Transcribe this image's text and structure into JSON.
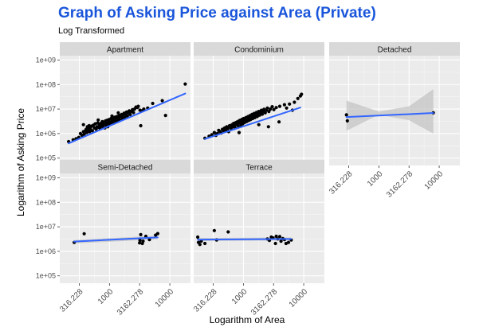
{
  "chart_data": {
    "type": "scatter",
    "title": "Graph of Asking Price against Area (Private)",
    "subtitle": "Log Transformed",
    "xlabel": "Logarithm of Area",
    "ylabel": "Logarithm of Asking Price",
    "x_scale": "log10",
    "y_scale": "log10",
    "xlim": [
      150,
      22000
    ],
    "ylim": [
      50000,
      1500000000
    ],
    "x_ticks": [
      316.228,
      1000,
      3162.278,
      10000
    ],
    "x_tick_labels": [
      "316.228",
      "1000",
      "3162.278",
      "10000"
    ],
    "y_ticks": [
      100000,
      1000000,
      10000000,
      100000000,
      1000000000
    ],
    "y_tick_labels": [
      "1e+05",
      "1e+06",
      "1e+07",
      "1e+08",
      "1e+09"
    ],
    "grid": true,
    "legend": "none",
    "point_color": "#000000",
    "fit_color": "#3366FF",
    "band_color": "#bebebe",
    "panel_background": "#ebebeb",
    "strip_background": "#d9d9d9",
    "panels": [
      {
        "name": "Apartment",
        "points": [
          [
            210,
            470000
          ],
          [
            250,
            560000
          ],
          [
            280,
            620000
          ],
          [
            310,
            700000
          ],
          [
            330,
            1000000
          ],
          [
            350,
            850000
          ],
          [
            370,
            1200000
          ],
          [
            380,
            950000
          ],
          [
            400,
            1300000
          ],
          [
            410,
            1500000
          ],
          [
            420,
            1100000
          ],
          [
            430,
            1900000
          ],
          [
            440,
            1700000
          ],
          [
            450,
            1400000
          ],
          [
            460,
            2100000
          ],
          [
            470,
            1200000
          ],
          [
            480,
            1600000
          ],
          [
            500,
            2000000
          ],
          [
            520,
            1300000
          ],
          [
            540,
            2200000
          ],
          [
            560,
            1700000
          ],
          [
            580,
            2500000
          ],
          [
            600,
            1500000
          ],
          [
            620,
            1900000
          ],
          [
            640,
            2700000
          ],
          [
            660,
            1800000
          ],
          [
            680,
            2300000
          ],
          [
            700,
            1600000
          ],
          [
            720,
            2600000
          ],
          [
            740,
            2000000
          ],
          [
            760,
            3100000
          ],
          [
            780,
            1900000
          ],
          [
            800,
            2400000
          ],
          [
            820,
            2900000
          ],
          [
            840,
            1700000
          ],
          [
            860,
            3300000
          ],
          [
            880,
            2200000
          ],
          [
            900,
            2600000
          ],
          [
            920,
            3500000
          ],
          [
            940,
            1900000
          ],
          [
            960,
            2800000
          ],
          [
            980,
            3700000
          ],
          [
            1000,
            2300000
          ],
          [
            1030,
            3000000
          ],
          [
            1060,
            4100000
          ],
          [
            1090,
            2500000
          ],
          [
            1120,
            3400000
          ],
          [
            1150,
            4400000
          ],
          [
            1180,
            2700000
          ],
          [
            1210,
            3800000
          ],
          [
            1240,
            4700000
          ],
          [
            1270,
            3100000
          ],
          [
            1300,
            4200000
          ],
          [
            1340,
            5000000
          ],
          [
            1380,
            3400000
          ],
          [
            1420,
            4600000
          ],
          [
            1460,
            5500000
          ],
          [
            1500,
            3700000
          ],
          [
            1550,
            5100000
          ],
          [
            1600,
            6000000
          ],
          [
            1650,
            4200000
          ],
          [
            1700,
            5600000
          ],
          [
            1750,
            6800000
          ],
          [
            1800,
            4600000
          ],
          [
            1860,
            6200000
          ],
          [
            1920,
            7500000
          ],
          [
            1980,
            5200000
          ],
          [
            2050,
            7000000
          ],
          [
            2120,
            8500000
          ],
          [
            2200,
            6000000
          ],
          [
            2280,
            8000000
          ],
          [
            2400,
            9500000
          ],
          [
            2500,
            7200000
          ],
          [
            2600,
            10000000
          ],
          [
            2750,
            12000000
          ],
          [
            2900,
            11500000
          ],
          [
            3000,
            13000000
          ],
          [
            3200,
            9000000
          ],
          [
            3400,
            8500000
          ],
          [
            3700,
            10000000
          ],
          [
            4300,
            11000000
          ],
          [
            5200,
            17000000
          ],
          [
            7500,
            22000000
          ],
          [
            8500,
            5500000
          ],
          [
            18000,
            105000000
          ],
          [
            3300,
            2100000
          ],
          [
            1400,
            7000000
          ],
          [
            1100,
            5200000
          ],
          [
            650,
            3600000
          ],
          [
            370,
            2300000
          ]
        ],
        "fit": {
          "x": [
            210,
            18000
          ],
          "y": [
            400000,
            43000000
          ]
        }
      },
      {
        "name": "Condominium",
        "points": [
          [
            230,
            650000
          ],
          [
            270,
            780000
          ],
          [
            300,
            900000
          ],
          [
            330,
            1100000
          ],
          [
            350,
            850000
          ],
          [
            370,
            1000000
          ],
          [
            390,
            1350000
          ],
          [
            410,
            1200000
          ],
          [
            430,
            1050000
          ],
          [
            450,
            1500000
          ],
          [
            470,
            1300000
          ],
          [
            490,
            1700000
          ],
          [
            510,
            1400000
          ],
          [
            530,
            1900000
          ],
          [
            550,
            1600000
          ],
          [
            570,
            1200000
          ],
          [
            590,
            2100000
          ],
          [
            610,
            1800000
          ],
          [
            630,
            1500000
          ],
          [
            650,
            2300000
          ],
          [
            670,
            1900000
          ],
          [
            690,
            2600000
          ],
          [
            710,
            2100000
          ],
          [
            730,
            1700000
          ],
          [
            750,
            2800000
          ],
          [
            770,
            2300000
          ],
          [
            790,
            3000000
          ],
          [
            810,
            2500000
          ],
          [
            830,
            1900000
          ],
          [
            850,
            3300000
          ],
          [
            870,
            2700000
          ],
          [
            890,
            3500000
          ],
          [
            910,
            2200000
          ],
          [
            930,
            3000000
          ],
          [
            950,
            3800000
          ],
          [
            970,
            2500000
          ],
          [
            990,
            3200000
          ],
          [
            1010,
            4100000
          ],
          [
            1040,
            2800000
          ],
          [
            1070,
            3600000
          ],
          [
            1100,
            4500000
          ],
          [
            1130,
            3100000
          ],
          [
            1160,
            4000000
          ],
          [
            1190,
            4900000
          ],
          [
            1220,
            3400000
          ],
          [
            1250,
            4400000
          ],
          [
            1280,
            5400000
          ],
          [
            1310,
            3700000
          ],
          [
            1350,
            4900000
          ],
          [
            1390,
            6000000
          ],
          [
            1430,
            4100000
          ],
          [
            1470,
            5400000
          ],
          [
            1510,
            6600000
          ],
          [
            1550,
            4500000
          ],
          [
            1600,
            6000000
          ],
          [
            1650,
            7300000
          ],
          [
            1700,
            5000000
          ],
          [
            1750,
            6600000
          ],
          [
            1800,
            8000000
          ],
          [
            1860,
            5600000
          ],
          [
            1920,
            7300000
          ],
          [
            1990,
            8900000
          ],
          [
            2060,
            6200000
          ],
          [
            2130,
            8100000
          ],
          [
            2200,
            9800000
          ],
          [
            2300,
            7000000
          ],
          [
            2400,
            9000000
          ],
          [
            2500,
            11000000
          ],
          [
            2650,
            8000000
          ],
          [
            2800,
            10000000
          ],
          [
            3000,
            12500000
          ],
          [
            3200,
            9500000
          ],
          [
            3500,
            11500000
          ],
          [
            4000,
            13000000
          ],
          [
            4800,
            15000000
          ],
          [
            5200,
            11000000
          ],
          [
            5800,
            16000000
          ],
          [
            7000,
            19000000
          ],
          [
            8000,
            27000000
          ],
          [
            8800,
            34000000
          ],
          [
            9200,
            40000000
          ],
          [
            6500,
            9000000
          ],
          [
            2600,
            1900000
          ],
          [
            1800,
            2300000
          ],
          [
            850,
            1100000
          ],
          [
            3900,
            3000000
          ]
        ],
        "fit": {
          "x": [
            230,
            8800
          ],
          "y": [
            600000,
            11500000
          ]
        }
      },
      {
        "name": "Detached",
        "points": [
          [
            290,
            5800000
          ],
          [
            300,
            3300000
          ],
          [
            8000,
            7000000
          ]
        ],
        "fit": {
          "x": [
            290,
            8000
          ],
          "y": [
            4700000,
            6900000
          ]
        },
        "band": {
          "x": [
            290,
            1000,
            3162,
            8000
          ],
          "lo": [
            1300000,
            5900000,
            3500000,
            1000000
          ],
          "hi": [
            22000000,
            8000000,
            13000000,
            65000000
          ]
        }
      },
      {
        "name": "Semi-Detached",
        "points": [
          [
            260,
            2300000
          ],
          [
            380,
            5200000
          ],
          [
            3150,
            2200000
          ],
          [
            3200,
            2800000
          ],
          [
            3300,
            4800000
          ],
          [
            3500,
            2100000
          ],
          [
            3600,
            2600000
          ],
          [
            4000,
            4100000
          ],
          [
            5800,
            4600000
          ],
          [
            6300,
            5300000
          ],
          [
            4600,
            3000000
          ]
        ],
        "fit": {
          "x": [
            260,
            6300
          ],
          "y": [
            2500000,
            3700000
          ]
        },
        "band": {
          "x": [
            260,
            6300
          ],
          "lo": [
            2100000,
            3100000
          ],
          "hi": [
            2900000,
            4400000
          ]
        }
      },
      {
        "name": "Terrace",
        "points": [
          [
            175,
            3800000
          ],
          [
            180,
            2300000
          ],
          [
            190,
            1900000
          ],
          [
            200,
            2600000
          ],
          [
            230,
            2100000
          ],
          [
            330,
            7000000
          ],
          [
            360,
            2900000
          ],
          [
            560,
            6200000
          ],
          [
            2500,
            3200000
          ],
          [
            2900,
            3800000
          ],
          [
            3100,
            3500000
          ],
          [
            3400,
            2100000
          ],
          [
            3500,
            4100000
          ],
          [
            3700,
            3200000
          ],
          [
            4000,
            4000000
          ],
          [
            4200,
            2600000
          ],
          [
            4500,
            3300000
          ],
          [
            5100,
            2100000
          ],
          [
            5600,
            2300000
          ],
          [
            6200,
            2900000
          ],
          [
            2700,
            2800000
          ],
          [
            4800,
            3000000
          ]
        ],
        "fit": {
          "x": [
            175,
            6200
          ],
          "y": [
            3000000,
            3200000
          ]
        },
        "band": {
          "x": [
            175,
            6200
          ],
          "lo": [
            2600000,
            2800000
          ],
          "hi": [
            3500000,
            3700000
          ]
        }
      }
    ]
  }
}
